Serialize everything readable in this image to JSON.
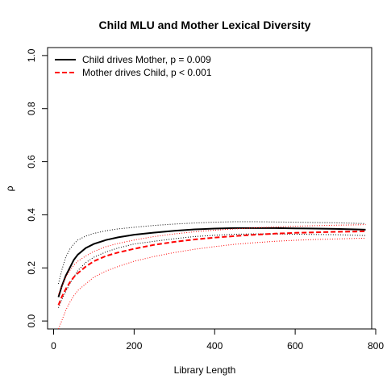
{
  "chart_data": {
    "type": "line",
    "title": "Child MLU and Mother Lexical Diversity",
    "xlabel": "Library Length",
    "ylabel": "ρ",
    "xlim": [
      -15,
      790
    ],
    "ylim": [
      -0.03,
      1.03
    ],
    "xticks": [
      0,
      200,
      400,
      600,
      800
    ],
    "yticks": [
      0.0,
      0.2,
      0.4,
      0.6,
      0.8,
      1.0
    ],
    "xtick_labels": [
      "0",
      "200",
      "400",
      "600",
      "800"
    ],
    "ytick_labels": [
      "0.0",
      "0.2",
      "0.4",
      "0.6",
      "0.8",
      "1.0"
    ],
    "grid": false,
    "legend_position": "top-left",
    "series": [
      {
        "name": "Child drives Mother, p = 0.009",
        "color": "#000000",
        "line": "solid",
        "x": [
          12,
          20,
          30,
          40,
          50,
          60,
          80,
          100,
          130,
          160,
          200,
          250,
          300,
          350,
          400,
          450,
          500,
          550,
          600,
          650,
          700,
          750,
          775
        ],
        "y": [
          0.09,
          0.13,
          0.17,
          0.2,
          0.23,
          0.25,
          0.275,
          0.29,
          0.305,
          0.315,
          0.325,
          0.333,
          0.34,
          0.345,
          0.348,
          0.35,
          0.35,
          0.35,
          0.349,
          0.348,
          0.347,
          0.345,
          0.344
        ],
        "upper": [
          0.14,
          0.19,
          0.24,
          0.27,
          0.29,
          0.305,
          0.32,
          0.33,
          0.34,
          0.347,
          0.353,
          0.36,
          0.365,
          0.369,
          0.372,
          0.374,
          0.374,
          0.373,
          0.372,
          0.371,
          0.37,
          0.368,
          0.367
        ],
        "lower": [
          0.05,
          0.08,
          0.11,
          0.14,
          0.165,
          0.19,
          0.22,
          0.24,
          0.26,
          0.275,
          0.29,
          0.3,
          0.31,
          0.318,
          0.323,
          0.327,
          0.328,
          0.328,
          0.327,
          0.326,
          0.325,
          0.323,
          0.322
        ]
      },
      {
        "name": "Mother drives Child, p < 0.001",
        "color": "#ff0000",
        "line": "dashed",
        "x": [
          12,
          20,
          30,
          40,
          50,
          60,
          80,
          100,
          130,
          160,
          200,
          250,
          300,
          350,
          400,
          450,
          500,
          550,
          600,
          650,
          700,
          750,
          775
        ],
        "y": [
          0.06,
          0.09,
          0.12,
          0.145,
          0.165,
          0.18,
          0.205,
          0.225,
          0.245,
          0.258,
          0.272,
          0.287,
          0.298,
          0.307,
          0.314,
          0.32,
          0.325,
          0.329,
          0.332,
          0.334,
          0.336,
          0.337,
          0.338
        ],
        "upper": [
          0.1,
          0.13,
          0.165,
          0.19,
          0.21,
          0.225,
          0.245,
          0.262,
          0.28,
          0.292,
          0.305,
          0.318,
          0.328,
          0.336,
          0.342,
          0.347,
          0.351,
          0.354,
          0.357,
          0.359,
          0.361,
          0.362,
          0.363
        ],
        "lower": [
          -0.03,
          0.0,
          0.04,
          0.07,
          0.095,
          0.115,
          0.14,
          0.165,
          0.188,
          0.205,
          0.225,
          0.243,
          0.258,
          0.27,
          0.28,
          0.289,
          0.295,
          0.3,
          0.304,
          0.307,
          0.309,
          0.311,
          0.312
        ]
      }
    ]
  }
}
